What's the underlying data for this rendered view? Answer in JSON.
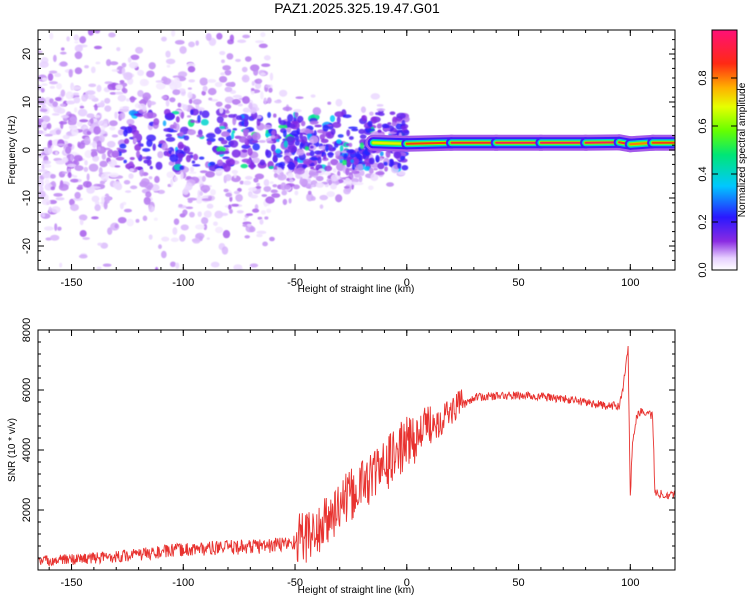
{
  "title": "PAZ1.2025.325.19.47.G01",
  "colors": {
    "snr_line": "#e8322f",
    "track": "#ff2a14",
    "axis": "#000000"
  },
  "chart_data": [
    {
      "type": "heatmap",
      "title": "PAZ1.2025.325.19.47.G01",
      "xlabel": "Height of straight line (km)",
      "ylabel": "Frequency (Hz)",
      "xlim": [
        -165,
        120
      ],
      "ylim": [
        -25,
        25
      ],
      "xticks": [
        -150,
        -100,
        -50,
        0,
        50,
        100
      ],
      "yticks": [
        -20,
        -10,
        0,
        10,
        20
      ],
      "colorbar": {
        "label": "Normalized spectral amplitude",
        "range": [
          0,
          1
        ],
        "ticks": [
          0.0,
          0.2,
          0.4,
          0.6,
          0.8
        ],
        "tick_labels": [
          "0.0",
          "0.2",
          "0.4",
          "0.6",
          "0.8"
        ]
      },
      "main_track": {
        "x": [
          -15,
          0,
          20,
          40,
          60,
          80,
          95,
          100,
          110,
          120
        ],
        "frequency": [
          1.5,
          1.3,
          1.5,
          1.5,
          1.5,
          1.5,
          1.6,
          1.2,
          1.5,
          1.5
        ],
        "amplitude": [
          0.7,
          0.85,
          0.9,
          0.95,
          0.95,
          0.95,
          0.9,
          0.8,
          0.85,
          0.85
        ]
      }
    },
    {
      "type": "line",
      "xlabel": "Height of straight line (km)",
      "ylabel": "SNR (10 * v/v)",
      "xlim": [
        -165,
        120
      ],
      "ylim": [
        0,
        8000
      ],
      "xticks": [
        -150,
        -100,
        -50,
        0,
        50,
        100
      ],
      "yticks": [
        2000,
        4000,
        6000,
        8000
      ],
      "series": [
        {
          "name": "SNR",
          "x": [
            -165,
            -140,
            -120,
            -100,
            -80,
            -60,
            -50,
            -40,
            -35,
            -30,
            -25,
            -20,
            -15,
            -10,
            -5,
            0,
            5,
            10,
            15,
            20,
            25,
            30,
            40,
            50,
            60,
            70,
            80,
            90,
            95,
            97,
            99,
            100,
            101,
            103,
            105,
            110,
            111,
            112,
            115,
            120
          ],
          "y": [
            120,
            200,
            300,
            450,
            500,
            550,
            650,
            900,
            1300,
            1800,
            2100,
            2500,
            2800,
            3100,
            3500,
            3900,
            4100,
            4600,
            4800,
            5100,
            5500,
            5750,
            5800,
            5820,
            5780,
            5700,
            5600,
            5450,
            5500,
            6200,
            7500,
            2500,
            4200,
            5200,
            5300,
            5150,
            2600,
            2550,
            2530,
            2520
          ]
        }
      ]
    }
  ]
}
